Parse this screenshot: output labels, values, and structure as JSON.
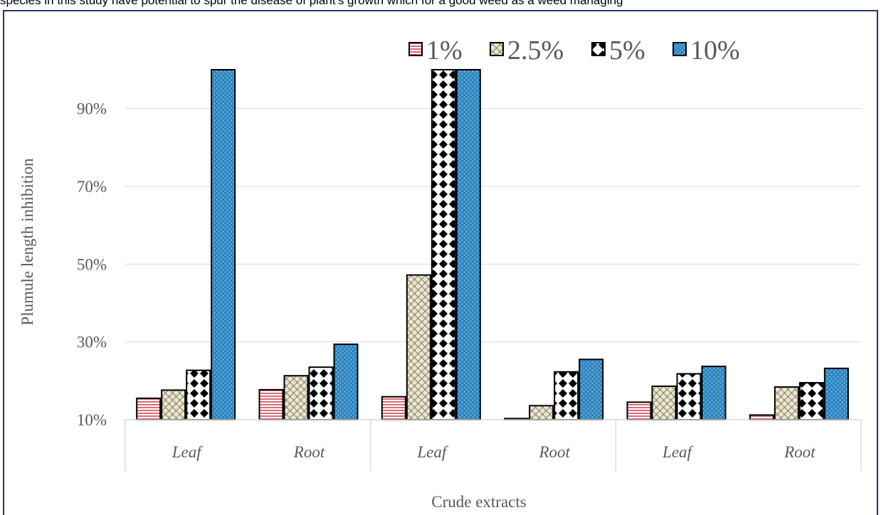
{
  "context": {
    "top_strip_text": "species in this study have potential to spur the disease of plant's growth which for a good weed as a weed managing"
  },
  "chart_data": {
    "type": "bar",
    "xlabel": "Crude extracts",
    "ylabel": "Plumule length inhibition",
    "categories": [
      "Leaf",
      "Root",
      "Leaf",
      "Root",
      "Leaf",
      "Root"
    ],
    "y_ticks": [
      "10%",
      "30%",
      "50%",
      "70%",
      "90%"
    ],
    "ylim": [
      0.1,
      1.0
    ],
    "grid": true,
    "legend_position": "top",
    "series": [
      {
        "name": "1%",
        "color": "#e8888f",
        "pattern": "horizontal-lines",
        "values": [
          0.155,
          0.177,
          0.159,
          0.103,
          0.145,
          0.112
        ]
      },
      {
        "name": "2.5%",
        "color": "#ddd8c1",
        "pattern": "basketweave",
        "values": [
          0.176,
          0.213,
          0.472,
          0.136,
          0.186,
          0.184
        ]
      },
      {
        "name": "5%",
        "color": "#000000",
        "pattern": "diamond-checks",
        "values": [
          0.227,
          0.235,
          1.0,
          0.223,
          0.218,
          0.195
        ]
      },
      {
        "name": "10%",
        "color": "#2e86c1",
        "pattern": "dotted-blue",
        "values": [
          1.0,
          0.294,
          1.0,
          0.255,
          0.237,
          0.232
        ]
      }
    ]
  }
}
